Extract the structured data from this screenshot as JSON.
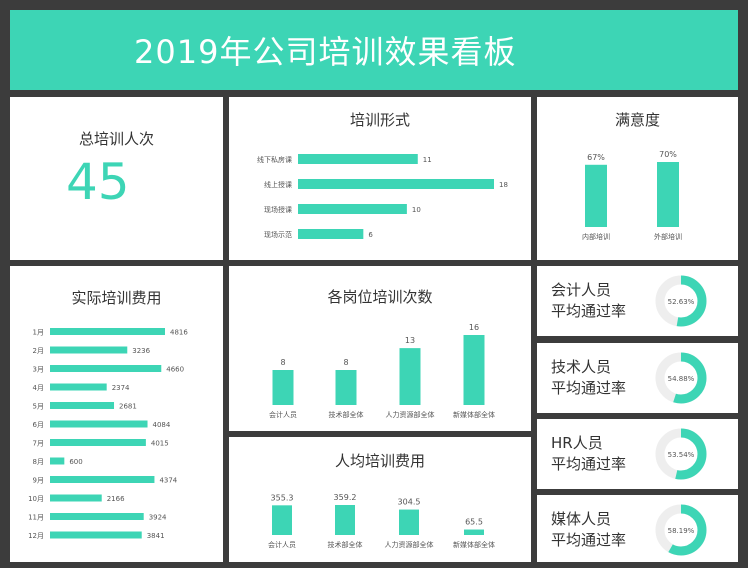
{
  "header": {
    "title": "2019年公司培训效果看板"
  },
  "total": {
    "label": "总培训人次",
    "value": "45"
  },
  "colors": {
    "accent": "#3dd5b5",
    "ring_track": "#eeeeee"
  },
  "training_form": {
    "title": "培训形式",
    "chart_data": {
      "type": "bar",
      "orientation": "horizontal",
      "categories": [
        "线下私房课",
        "线上授课",
        "现场授课",
        "现场示范"
      ],
      "values": [
        11,
        18,
        10,
        6
      ]
    }
  },
  "satisfaction": {
    "title": "满意度",
    "chart_data": {
      "type": "bar",
      "categories": [
        "内部培训",
        "外部培训"
      ],
      "values": [
        67,
        70
      ],
      "value_labels": [
        "67%",
        "70%"
      ]
    }
  },
  "cost": {
    "title": "实际培训费用",
    "chart_data": {
      "type": "bar",
      "orientation": "horizontal",
      "categories": [
        "1月",
        "2月",
        "3月",
        "4月",
        "5月",
        "6月",
        "7月",
        "8月",
        "9月",
        "10月",
        "11月",
        "12月"
      ],
      "values": [
        4816,
        3236,
        4660,
        2374,
        2681,
        4084,
        4015,
        600,
        4374,
        2166,
        3924,
        3841
      ]
    }
  },
  "post_count": {
    "title": "各岗位培训次数",
    "chart_data": {
      "type": "bar",
      "categories": [
        "会计人员",
        "技术部全体",
        "人力资源部全体",
        "新媒体部全体"
      ],
      "values": [
        8,
        8,
        13,
        16
      ]
    }
  },
  "per_capita": {
    "title": "人均培训费用",
    "chart_data": {
      "type": "bar",
      "categories": [
        "会计人员",
        "技术部全体",
        "人力资源部全体",
        "新媒体部全体"
      ],
      "values": [
        355.3,
        359.2,
        304.5,
        65.5
      ],
      "value_labels": [
        "355.3",
        "359.2",
        "304.5",
        "65.5"
      ]
    }
  },
  "pass_rates": [
    {
      "line1": "会计人员",
      "line2": "平均通过率",
      "rate": 52.63,
      "label": "52.63%"
    },
    {
      "line1": "技术人员",
      "line2": "平均通过率",
      "rate": 54.88,
      "label": "54.88%"
    },
    {
      "line1": "HR人员",
      "line2": "平均通过率",
      "rate": 53.54,
      "label": "53.54%"
    },
    {
      "line1": "媒体人员",
      "line2": "平均通过率",
      "rate": 58.19,
      "label": "58.19%"
    }
  ]
}
